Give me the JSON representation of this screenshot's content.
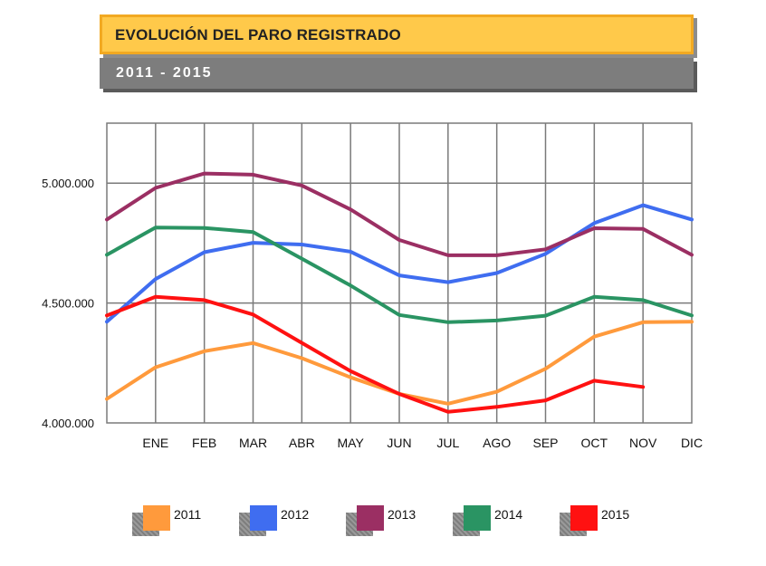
{
  "header": {
    "title": "EVOLUCIÓN DEL PARO REGISTRADO",
    "subtitle": "2011 - 2015"
  },
  "chart_data": {
    "type": "line",
    "title": "EVOLUCIÓN DEL PARO REGISTRADO",
    "subtitle": "2011 - 2015",
    "x": [
      "",
      "ENE",
      "FEB",
      "MAR",
      "ABR",
      "MAY",
      "JUN",
      "JUL",
      "AGO",
      "SEP",
      "OCT",
      "NOV",
      "DIC"
    ],
    "y_ticks": [
      4000000,
      4500000,
      5000000
    ],
    "y_tick_labels": [
      "4.000.000",
      "4.500.000",
      "5.000.000"
    ],
    "ylim": [
      4000000,
      5250000
    ],
    "grid": true,
    "legend_position": "bottom",
    "series": [
      {
        "name": "2011",
        "color": "#ff9a3c",
        "values": [
          4100000,
          4232000,
          4299000,
          4333000,
          4270000,
          4190000,
          4121000,
          4080000,
          4130000,
          4226000,
          4360000,
          4420000,
          4422000
        ]
      },
      {
        "name": "2012",
        "color": "#3f6df0",
        "values": [
          4422000,
          4600000,
          4712000,
          4751000,
          4744000,
          4714000,
          4615000,
          4587000,
          4625000,
          4705000,
          4833000,
          4908000,
          4848000
        ]
      },
      {
        "name": "2013",
        "color": "#9b2f63",
        "values": [
          4848000,
          4980000,
          5040000,
          5035000,
          4990000,
          4890000,
          4763000,
          4699000,
          4699000,
          4724000,
          4812000,
          4809000,
          4701000
        ]
      },
      {
        "name": "2014",
        "color": "#2a9463",
        "values": [
          4701000,
          4815000,
          4813000,
          4796000,
          4685000,
          4573000,
          4450000,
          4420000,
          4427000,
          4447000,
          4526000,
          4512000,
          4448000
        ]
      },
      {
        "name": "2015",
        "color": "#ff1111",
        "values": [
          4448000,
          4526000,
          4512000,
          4452000,
          4334000,
          4216000,
          4121000,
          4046000,
          4067000,
          4094000,
          4176000,
          4150000,
          null
        ]
      }
    ]
  }
}
